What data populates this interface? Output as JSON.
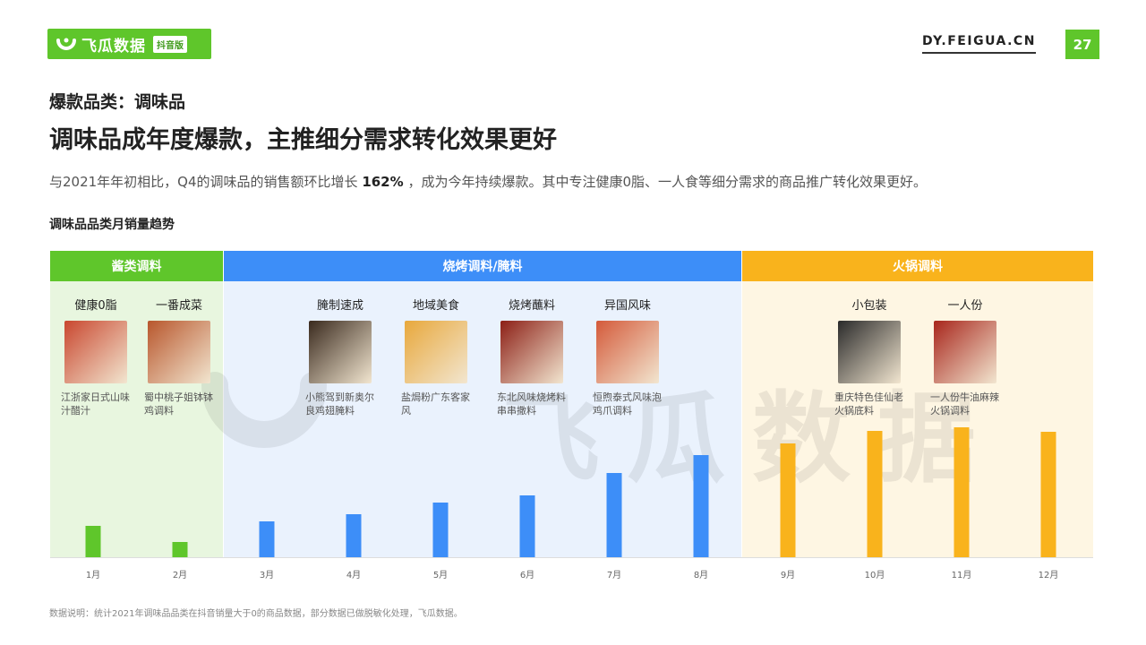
{
  "header": {
    "logo_name": "飞瓜数据",
    "logo_tag": "抖音版",
    "site": "DY.FEIGUA.CN",
    "page_number": "27"
  },
  "kicker": "爆款品类：调味品",
  "title": "调味品成年度爆款，主推细分需求转化效果更好",
  "description": {
    "before": "与2021年年初相比，Q4的调味品的销售额环比增长",
    "highlight": "162%",
    "after": "，成为今年持续爆款。其中专注健康0脂、一人食等细分需求的商品推广转化效果更好。"
  },
  "subtitle": "调味品品类月销量趋势",
  "segments": [
    {
      "label": "酱类调料",
      "color": "#5fc62b"
    },
    {
      "label": "烧烤调料/腌料",
      "color": "#3d8ef8"
    },
    {
      "label": "火锅调料",
      "color": "#f9b31c"
    }
  ],
  "products": [
    {
      "category": "健康0脂",
      "name": "江浙家日式山味汁醋汁",
      "image_color": "#c9472f"
    },
    {
      "category": "一番成菜",
      "name": "蜀中桃子姐钵钵鸡调料",
      "image_color": "#b8562c"
    },
    {
      "category": "腌制速成",
      "name": "小熊驾到新奥尔良鸡翅腌料",
      "image_color": "#3a2a1e"
    },
    {
      "category": "地域美食",
      "name": "盐焗粉广东客家风",
      "image_color": "#e8a83c"
    },
    {
      "category": "烧烤蘸料",
      "name": "东北风味烧烤料串串撒料",
      "image_color": "#8c1f16"
    },
    {
      "category": "异国风味",
      "name": "恒煦泰式风味泡鸡爪调料",
      "image_color": "#d45a3a"
    },
    {
      "category": "小包装",
      "name": "重庆特色佳仙老火锅底料",
      "image_color": "#2a2a2a"
    },
    {
      "category": "一人份",
      "name": "一人份牛油麻辣火锅调料",
      "image_color": "#a8261c"
    }
  ],
  "watermark": "飞瓜数据",
  "chart_data": {
    "type": "bar",
    "title": "调味品品类月销量趋势",
    "categories": [
      "1月",
      "2月",
      "3月",
      "4月",
      "5月",
      "6月",
      "7月",
      "8月",
      "9月",
      "10月",
      "11月",
      "12月"
    ],
    "values": [
      35,
      17,
      40,
      48,
      61,
      69,
      94,
      114,
      127,
      141,
      145,
      140
    ],
    "colors": [
      "#5fc62b",
      "#5fc62b",
      "#3d8ef8",
      "#3d8ef8",
      "#3d8ef8",
      "#3d8ef8",
      "#3d8ef8",
      "#3d8ef8",
      "#f9b31c",
      "#f9b31c",
      "#f9b31c",
      "#f9b31c"
    ],
    "segments": [
      "酱类调料",
      "烧烤调料/腌料",
      "火锅调料"
    ],
    "y_axis_shown": false,
    "grid": false
  },
  "note": "数据说明：统计2021年调味品品类在抖音销量大于0的商品数据，部分数据已做脱敏化处理，飞瓜数据。"
}
